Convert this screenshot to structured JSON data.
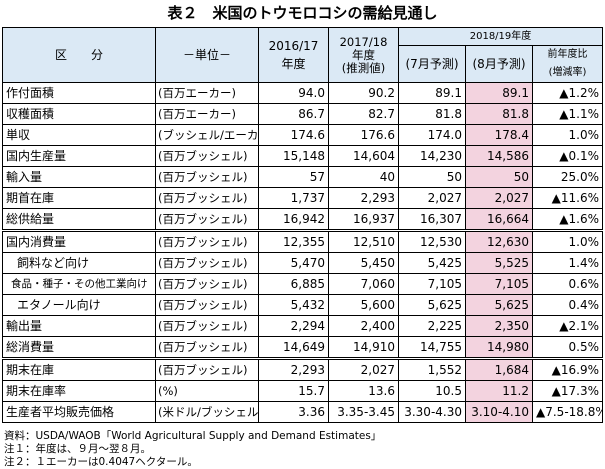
{
  "title": "表２　米国のトウモロコシの需給見通し",
  "header": {
    "category": "区　　分",
    "unit": "－単位－",
    "col1": [
      "2016/17",
      "年度"
    ],
    "col2": [
      "2017/18",
      "年度",
      "(推測値)"
    ],
    "group": "2018/19年度",
    "col3": "(7月予測)",
    "col4": "(8月予測)",
    "col5": [
      "前年度比",
      "(増減率)"
    ]
  },
  "rows": [
    {
      "label": "作付面積",
      "unit": "(百万エーカー)",
      "v1": "94.0",
      "v2": "90.2",
      "v3": "89.1",
      "v4": "89.1",
      "chg": "▲1.2%",
      "indent": 0
    },
    {
      "label": "収穫面積",
      "unit": "(百万エーカー)",
      "v1": "86.7",
      "v2": "82.7",
      "v3": "81.8",
      "v4": "81.8",
      "chg": "▲1.1%",
      "indent": 0
    },
    {
      "label": "単収",
      "unit": "(ブッシェル/エーカー)",
      "v1": "174.6",
      "v2": "176.6",
      "v3": "174.0",
      "v4": "178.4",
      "chg": "1.0%",
      "indent": 0
    },
    {
      "label": "国内生産量",
      "unit": "(百万ブッシェル)",
      "v1": "15,148",
      "v2": "14,604",
      "v3": "14,230",
      "v4": "14,586",
      "chg": "▲0.1%",
      "indent": 0
    },
    {
      "label": "輸入量",
      "unit": "(百万ブッシェル)",
      "v1": "57",
      "v2": "40",
      "v3": "50",
      "v4": "50",
      "chg": "25.0%",
      "indent": 0
    },
    {
      "label": "期首在庫",
      "unit": "(百万ブッシェル)",
      "v1": "1,737",
      "v2": "2,293",
      "v3": "2,027",
      "v4": "2,027",
      "chg": "▲11.6%",
      "indent": 0
    },
    {
      "label": "総供給量",
      "unit": "(百万ブッシェル)",
      "v1": "16,942",
      "v2": "16,937",
      "v3": "16,307",
      "v4": "16,664",
      "chg": "▲1.6%",
      "indent": 0
    },
    {
      "label": "国内消費量",
      "unit": "(百万ブッシェル)",
      "v1": "12,355",
      "v2": "12,510",
      "v3": "12,530",
      "v4": "12,630",
      "chg": "1.0%",
      "indent": 0
    },
    {
      "label": "飼料など向け",
      "unit": "(百万ブッシェル)",
      "v1": "5,470",
      "v2": "5,450",
      "v3": "5,425",
      "v4": "5,525",
      "chg": "1.4%",
      "indent": 1
    },
    {
      "label": "食品・種子・その他工業向け",
      "unit": "(百万ブッシェル)",
      "v1": "6,885",
      "v2": "7,060",
      "v3": "7,105",
      "v4": "7,105",
      "chg": "0.6%",
      "indent": 2
    },
    {
      "label": "エタノール向け",
      "unit": "(百万ブッシェル)",
      "v1": "5,432",
      "v2": "5,600",
      "v3": "5,625",
      "v4": "5,625",
      "chg": "0.4%",
      "indent": 1
    },
    {
      "label": "輸出量",
      "unit": "(百万ブッシェル)",
      "v1": "2,294",
      "v2": "2,400",
      "v3": "2,225",
      "v4": "2,350",
      "chg": "▲2.1%",
      "indent": 0
    },
    {
      "label": "総消費量",
      "unit": "(百万ブッシェル)",
      "v1": "14,649",
      "v2": "14,910",
      "v3": "14,755",
      "v4": "14,980",
      "chg": "0.5%",
      "indent": 0
    },
    {
      "label": "期末在庫",
      "unit": "(百万ブッシェル)",
      "v1": "2,293",
      "v2": "2,027",
      "v3": "1,552",
      "v4": "1,684",
      "chg": "▲16.9%",
      "indent": 0
    },
    {
      "label": "期末在庫率",
      "unit": "(%)",
      "v1": "15.7",
      "v2": "13.6",
      "v3": "10.5",
      "v4": "11.2",
      "chg": "▲17.3%",
      "indent": 0
    },
    {
      "label": "生産者平均販売価格",
      "unit": "(米ドル/ブッシェル)",
      "v1": "3.36",
      "v2": "3.35-3.45",
      "v3": "3.30-4.30",
      "v4": "3.10-4.10",
      "chg": "▲7.5-18.8%",
      "indent": 0
    }
  ],
  "notes": [
    "資料：USDA/WAOB「World Agricultural Supply and Demand Estimates」",
    "注１：年度は、９月～翌８月。",
    "注２：１エーカーは0.4047ヘクタール。"
  ]
}
